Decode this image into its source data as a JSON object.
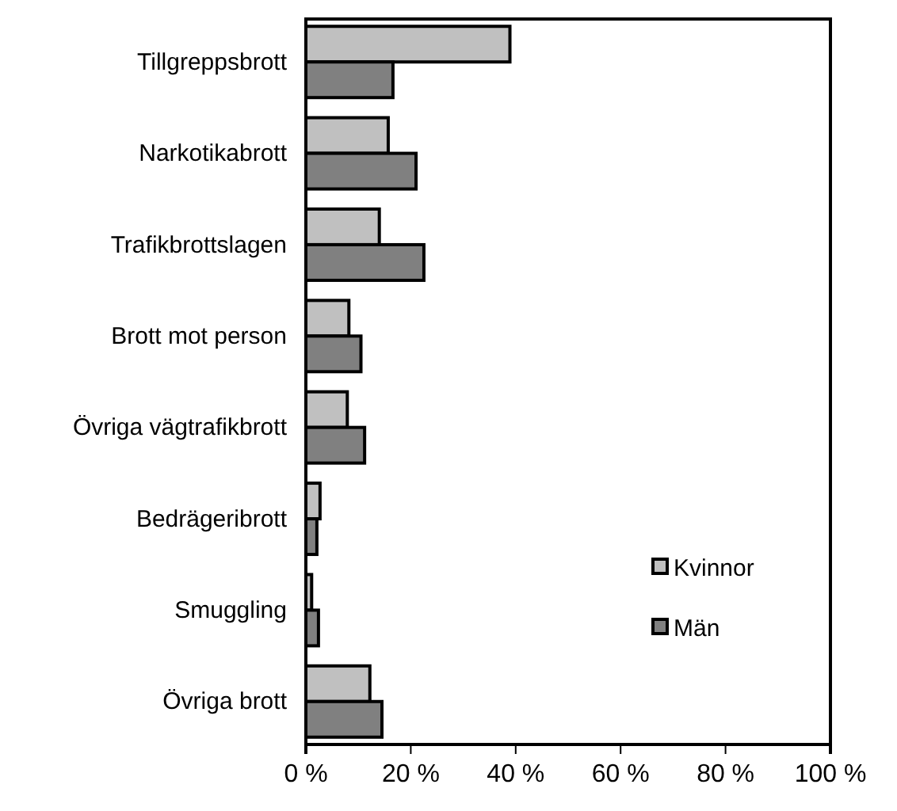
{
  "chart_data": {
    "type": "bar",
    "orientation": "horizontal",
    "categories": [
      "Tillgreppsbrott",
      "Narkotikabrott",
      "Trafikbrottslagen",
      "Brott mot person",
      "Övriga vägtrafikbrott",
      "Bedrägeribrott",
      "Smuggling",
      "Övriga brott"
    ],
    "series": [
      {
        "name": "Kvinnor",
        "color": "#c0c0c0",
        "values": [
          38.9,
          15.7,
          14,
          8.2,
          7.9,
          2.7,
          1.1,
          12.2
        ]
      },
      {
        "name": "Män",
        "color": "#808080",
        "values": [
          16.6,
          21,
          22.5,
          10.5,
          11.2,
          2.1,
          2.4,
          14.5
        ]
      }
    ],
    "xlim": [
      0,
      100
    ],
    "xticks": [
      {
        "value": 0,
        "label": "0 %"
      },
      {
        "value": 20,
        "label": "20 %"
      },
      {
        "value": 40,
        "label": "40 %"
      },
      {
        "value": 60,
        "label": "60 %"
      },
      {
        "value": 80,
        "label": "80 %"
      },
      {
        "value": 100,
        "label": "100 %"
      }
    ],
    "legend": "bottom right",
    "grid": false
  }
}
